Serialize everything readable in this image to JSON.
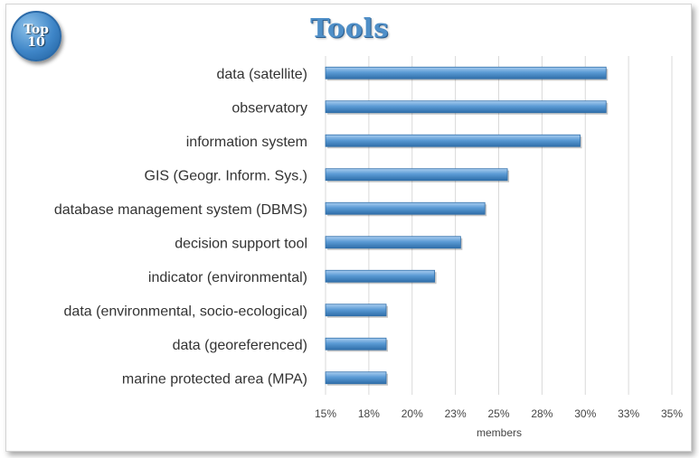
{
  "badge": {
    "line1": "Top",
    "line2": "10"
  },
  "chart_data": {
    "type": "bar",
    "orientation": "horizontal",
    "title": "Tools",
    "xlabel": "members",
    "ylabel": "",
    "categories": [
      "data (satellite)",
      "observatory",
      "information system",
      "GIS (Geogr. Inform. Sys.)",
      "database management system (DBMS)",
      "decision support tool",
      "indicator (environmental)",
      "data (environmental, socio-ecological)",
      "data (georeferenced)",
      "marine protected area (MPA)"
    ],
    "values": [
      0.312,
      0.312,
      0.297,
      0.255,
      0.242,
      0.228,
      0.213,
      0.185,
      0.185,
      0.185
    ],
    "xlim": [
      0.15,
      0.35
    ],
    "xticks": [
      0.15,
      0.175,
      0.2,
      0.225,
      0.25,
      0.275,
      0.3,
      0.325,
      0.35
    ],
    "xtick_labels": [
      "15%",
      "18%",
      "20%",
      "23%",
      "25%",
      "28%",
      "30%",
      "33%",
      "35%"
    ],
    "grid": true,
    "legend": "none",
    "bar_color": "#5b9bd5"
  }
}
